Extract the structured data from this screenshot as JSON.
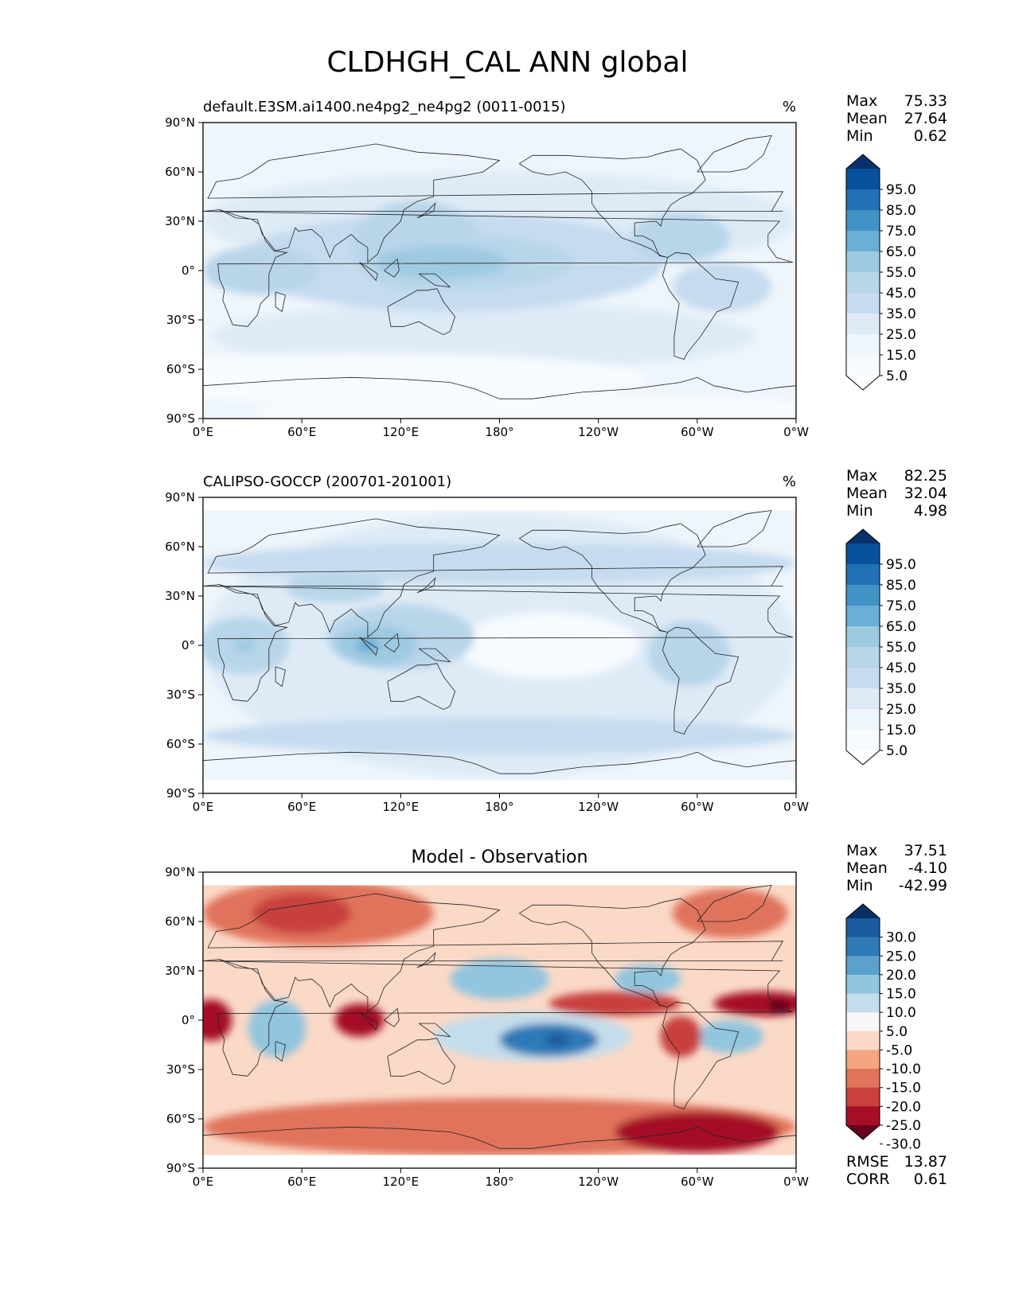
{
  "figure": {
    "title": "CLDHGH_CAL ANN global"
  },
  "axes": {
    "lat_labels": [
      "90°N",
      "60°N",
      "30°N",
      "0°",
      "30°S",
      "60°S",
      "90°S"
    ],
    "lon_labels": [
      "0°E",
      "60°E",
      "120°E",
      "180°",
      "120°W",
      "60°W",
      "0°W"
    ]
  },
  "panels": [
    {
      "id": "model",
      "title": "default.E3SM.ai1400.ne4pg2_ne4pg2 (0011-0015)",
      "units": "%",
      "stats": [
        {
          "label": "Max",
          "value": "75.33"
        },
        {
          "label": "Mean",
          "value": "27.64"
        },
        {
          "label": "Min",
          "value": "0.62"
        }
      ],
      "colorbar": {
        "labels": [
          "95.0",
          "85.0",
          "75.0",
          "65.0",
          "55.0",
          "45.0",
          "35.0",
          "25.0",
          "15.0",
          "5.0"
        ],
        "colors": [
          "#08306b",
          "#08519c",
          "#2171b5",
          "#4292c6",
          "#6baed6",
          "#9ecae1",
          "#b8d5ea",
          "#c6dbef",
          "#deebf7",
          "#eef5fb",
          "#f7fbff",
          "#ffffff"
        ]
      },
      "blobs": [
        {
          "lon": 0,
          "lat": 0,
          "w": 360,
          "h": 180,
          "value": 15
        },
        {
          "lon": 180,
          "lat": 30,
          "w": 360,
          "h": 60,
          "value": 25
        },
        {
          "lon": 170,
          "lat": -40,
          "w": 330,
          "h": 40,
          "value": 25
        },
        {
          "lon": 150,
          "lat": 5,
          "w": 260,
          "h": 60,
          "value": 35
        },
        {
          "lon": 130,
          "lat": 15,
          "w": 80,
          "h": 55,
          "value": 45
        },
        {
          "lon": 35,
          "lat": 0,
          "w": 70,
          "h": 30,
          "value": 45
        },
        {
          "lon": 160,
          "lat": 5,
          "w": 130,
          "h": 32,
          "value": 45
        },
        {
          "lon": 145,
          "lat": 5,
          "w": 80,
          "h": 20,
          "value": 55
        },
        {
          "lon": 290,
          "lat": 20,
          "w": 60,
          "h": 30,
          "value": 45
        },
        {
          "lon": 315,
          "lat": -10,
          "w": 60,
          "h": 30,
          "value": 40
        },
        {
          "lon": 90,
          "lat": -65,
          "w": 360,
          "h": 30,
          "value": 12
        },
        {
          "lon": 210,
          "lat": -85,
          "w": 360,
          "h": 20,
          "value": 6
        }
      ],
      "sample_points": [
        {
          "lon": 30,
          "lat": 0,
          "value": 50
        },
        {
          "lon": 140,
          "lat": 5,
          "value": 60
        }
      ]
    },
    {
      "id": "obs",
      "title": "CALIPSO-GOCCP (200701-201001)",
      "units": "%",
      "stats": [
        {
          "label": "Max",
          "value": "82.25"
        },
        {
          "label": "Mean",
          "value": "32.04"
        },
        {
          "label": "Min",
          "value": "4.98"
        }
      ],
      "colorbar": {
        "labels": [
          "95.0",
          "85.0",
          "75.0",
          "65.0",
          "55.0",
          "45.0",
          "35.0",
          "25.0",
          "15.0",
          "5.0"
        ],
        "colors": [
          "#08306b",
          "#08519c",
          "#2171b5",
          "#4292c6",
          "#6baed6",
          "#9ecae1",
          "#b8d5ea",
          "#c6dbef",
          "#deebf7",
          "#eef5fb",
          "#f7fbff",
          "#ffffff"
        ]
      },
      "blobs": [
        {
          "lon": 180,
          "lat": 0,
          "w": 360,
          "h": 160,
          "value": 25
        },
        {
          "lon": 210,
          "lat": 0,
          "w": 110,
          "h": 40,
          "value": 12
        },
        {
          "lon": 180,
          "lat": 50,
          "w": 360,
          "h": 25,
          "value": 35
        },
        {
          "lon": 180,
          "lat": -55,
          "w": 360,
          "h": 22,
          "value": 35
        },
        {
          "lon": 120,
          "lat": 5,
          "w": 90,
          "h": 40,
          "value": 45
        },
        {
          "lon": 105,
          "lat": 0,
          "w": 50,
          "h": 25,
          "value": 60
        },
        {
          "lon": 25,
          "lat": 0,
          "w": 55,
          "h": 35,
          "value": 50
        },
        {
          "lon": 295,
          "lat": -5,
          "w": 50,
          "h": 40,
          "value": 45
        },
        {
          "lon": 80,
          "lat": 35,
          "w": 60,
          "h": 18,
          "value": 45
        }
      ],
      "sample_points": [
        {
          "lon": 25,
          "lat": 0,
          "value": 60
        },
        {
          "lon": 100,
          "lat": 0,
          "value": 70
        }
      ]
    },
    {
      "id": "diff",
      "title": "Model - Observation",
      "units": "",
      "stats": [
        {
          "label": "Max",
          "value": "37.51"
        },
        {
          "label": "Mean",
          "value": "-4.10"
        },
        {
          "label": "Min",
          "value": "-42.99"
        }
      ],
      "colorbar": {
        "labels": [
          "30.0",
          "25.0",
          "20.0",
          "15.0",
          "10.0",
          "5.0",
          "-5.0",
          "-10.0",
          "-15.0",
          "-20.0",
          "-25.0",
          "-30.0"
        ],
        "colors": [
          "#053061",
          "#1b5a9e",
          "#2f79b7",
          "#5aa2cd",
          "#92c5de",
          "#c3ddec",
          "#f7f7f7",
          "#fbd9c7",
          "#f4a582",
          "#e0735c",
          "#c8413e",
          "#a50f25",
          "#67001f"
        ]
      },
      "blobs": [
        {
          "lon": 70,
          "lat": 65,
          "w": 140,
          "h": 40,
          "value": -12
        },
        {
          "lon": 60,
          "lat": 65,
          "w": 60,
          "h": 25,
          "value": -20
        },
        {
          "lon": 320,
          "lat": 65,
          "w": 70,
          "h": 30,
          "value": -15
        },
        {
          "lon": 180,
          "lat": -65,
          "w": 360,
          "h": 35,
          "value": -12
        },
        {
          "lon": 300,
          "lat": -68,
          "w": 100,
          "h": 25,
          "value": -22
        },
        {
          "lon": 180,
          "lat": 25,
          "w": 60,
          "h": 25,
          "value": 15
        },
        {
          "lon": 200,
          "lat": -10,
          "w": 120,
          "h": 30,
          "value": 12
        },
        {
          "lon": 210,
          "lat": -12,
          "w": 60,
          "h": 20,
          "value": 25
        },
        {
          "lon": 270,
          "lat": 25,
          "w": 40,
          "h": 18,
          "value": 15
        },
        {
          "lon": 45,
          "lat": -5,
          "w": 35,
          "h": 35,
          "value": 15
        },
        {
          "lon": 320,
          "lat": -10,
          "w": 40,
          "h": 20,
          "value": 15
        },
        {
          "lon": 5,
          "lat": 0,
          "w": 25,
          "h": 25,
          "value": -25
        },
        {
          "lon": 95,
          "lat": 0,
          "w": 30,
          "h": 20,
          "value": -25
        },
        {
          "lon": 250,
          "lat": 10,
          "w": 80,
          "h": 15,
          "value": -18
        },
        {
          "lon": 290,
          "lat": -10,
          "w": 25,
          "h": 25,
          "value": -20
        },
        {
          "lon": 340,
          "lat": 10,
          "w": 60,
          "h": 15,
          "value": -22
        }
      ],
      "sample_points": [
        {
          "lon": 215,
          "lat": -12,
          "value": 30
        },
        {
          "lon": 350,
          "lat": 8,
          "value": -30
        }
      ],
      "metrics": [
        {
          "label": "RMSE",
          "value": "13.87"
        },
        {
          "label": "CORR",
          "value": "0.61"
        }
      ]
    }
  ]
}
